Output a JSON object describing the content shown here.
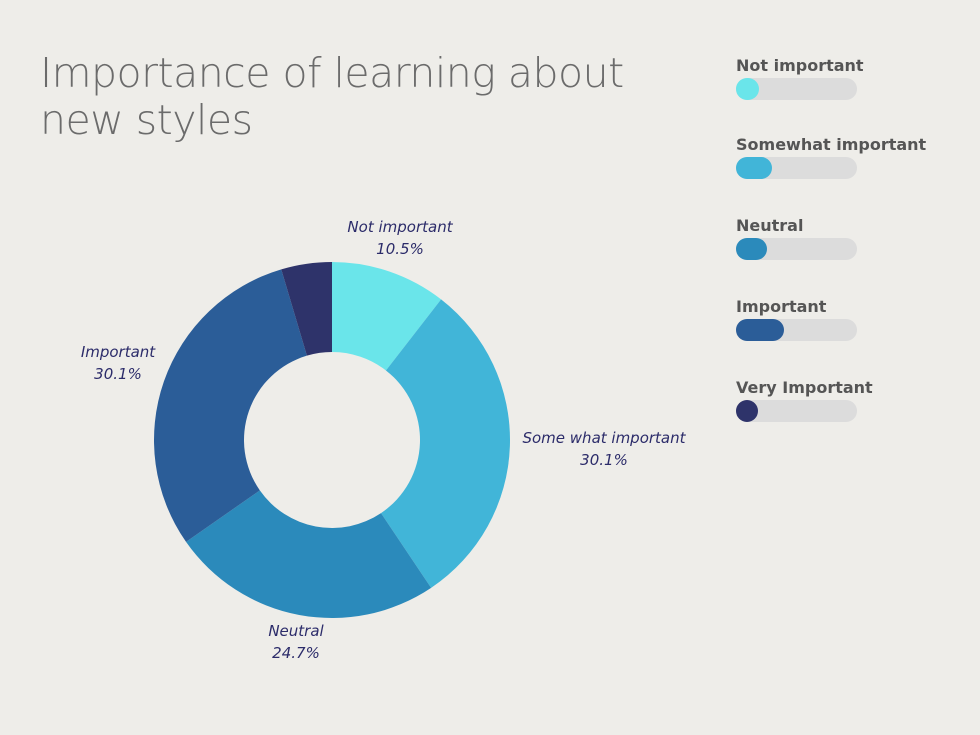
{
  "title": "Importance of learning about new styles",
  "chart_data": {
    "type": "pie",
    "donut": true,
    "slices": [
      {
        "label": "Not important",
        "display_label": "Not important",
        "value_text": "10.5%",
        "value": 10.5,
        "color": "#6ae5ea"
      },
      {
        "label": "Somewhat important",
        "display_label": "Some what important",
        "value_text": "30.1%",
        "value": 30.1,
        "color": "#41b5d8"
      },
      {
        "label": "Neutral",
        "display_label": "Neutral",
        "value_text": "24.7%",
        "value": 24.7,
        "color": "#2b8abb"
      },
      {
        "label": "Important",
        "display_label": "Important",
        "value_text": "30.1%",
        "value": 30.1,
        "color": "#2b5d98"
      },
      {
        "label": "Very Important",
        "display_label": "",
        "value_text": "",
        "value": 4.6,
        "color": "#2e336a"
      }
    ]
  },
  "legend": {
    "items": [
      {
        "label": "Not important",
        "color": "#6ae5ea",
        "level": 0.19
      },
      {
        "label": "Somewhat important",
        "color": "#41b5d8",
        "level": 0.3
      },
      {
        "label": "Neutral",
        "color": "#2b8abb",
        "level": 0.26
      },
      {
        "label": "Important",
        "color": "#2b5d98",
        "level": 0.4
      },
      {
        "label": "Very Important",
        "color": "#2e336a",
        "level": 0.18
      }
    ]
  }
}
